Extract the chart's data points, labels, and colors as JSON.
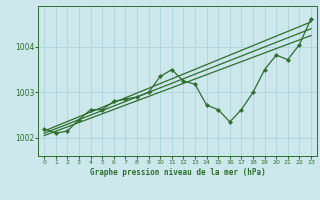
{
  "title": "Graphe pression niveau de la mer (hPa)",
  "bg_color": "#cce8ec",
  "grid_color": "#aacdd4",
  "line_color": "#2d6e2d",
  "xlim": [
    -0.5,
    23.5
  ],
  "ylim": [
    1001.6,
    1004.9
  ],
  "yticks": [
    1002,
    1003,
    1004
  ],
  "xticks": [
    0,
    1,
    2,
    3,
    4,
    5,
    6,
    7,
    8,
    9,
    10,
    11,
    12,
    13,
    14,
    15,
    16,
    17,
    18,
    19,
    20,
    21,
    22,
    23
  ],
  "main_series": [
    1002.2,
    1002.1,
    1002.15,
    1002.4,
    1002.62,
    1002.62,
    1002.8,
    1002.85,
    1002.9,
    1003.0,
    1003.35,
    1003.5,
    1003.25,
    1003.18,
    1002.72,
    1002.62,
    1002.35,
    1002.62,
    1003.0,
    1003.5,
    1003.82,
    1003.72,
    1004.05,
    1004.62
  ],
  "trend1": [
    1002.15,
    1004.55
  ],
  "trend1_x": [
    0,
    23
  ],
  "trend2": [
    1002.1,
    1004.4
  ],
  "trend2_x": [
    0,
    23
  ],
  "trend3": [
    1002.05,
    1004.25
  ],
  "trend3_x": [
    0,
    23
  ]
}
